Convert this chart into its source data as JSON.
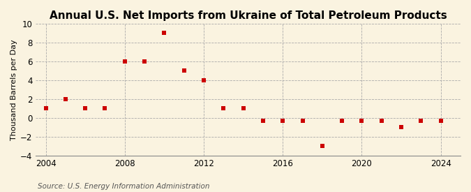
{
  "title": "Annual U.S. Net Imports from Ukraine of Total Petroleum Products",
  "ylabel": "Thousand Barrels per Day",
  "source": "Source: U.S. Energy Information Administration",
  "years": [
    2004,
    2005,
    2006,
    2007,
    2008,
    2009,
    2010,
    2011,
    2012,
    2013,
    2014,
    2015,
    2016,
    2017,
    2018,
    2019,
    2020,
    2021,
    2022,
    2023,
    2024
  ],
  "values": [
    1,
    2,
    1,
    1,
    6,
    6,
    9,
    5,
    4,
    1,
    1,
    -0.3,
    -0.3,
    -0.3,
    -3,
    -0.3,
    -0.3,
    -0.3,
    -1,
    -0.3,
    -0.3
  ],
  "marker_color": "#cc0000",
  "marker_size": 5,
  "bg_color": "#faf3e0",
  "plot_bg_color": "#faf3e0",
  "grid_color": "#aaaaaa",
  "ylim": [
    -4,
    10
  ],
  "yticks": [
    -4,
    -2,
    0,
    2,
    4,
    6,
    8,
    10
  ],
  "xlim": [
    2003.5,
    2025
  ],
  "xticks": [
    2004,
    2008,
    2012,
    2016,
    2020,
    2024
  ],
  "vline_years": [
    2004,
    2008,
    2012,
    2016,
    2020,
    2024
  ],
  "title_fontsize": 11,
  "label_fontsize": 8,
  "tick_fontsize": 8.5,
  "source_fontsize": 7.5
}
